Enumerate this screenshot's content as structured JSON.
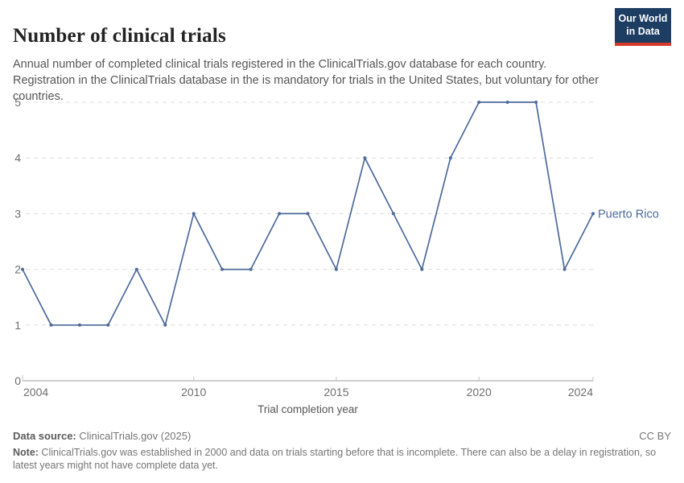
{
  "header": {
    "title": "Number of clinical trials",
    "subtitle": "Annual number of completed clinical trials registered in the ClinicalTrials.gov database for each country. Registration in the ClinicalTrials database in the is mandatory for trials in the United States, but voluntary for other countries.",
    "logo": {
      "line1": "Our World",
      "line2": "in Data"
    }
  },
  "chart_data": {
    "type": "line",
    "title": "Number of clinical trials",
    "xlabel": "Trial completion year",
    "ylabel": "",
    "xlim": [
      2004,
      2024
    ],
    "ylim": [
      0,
      5
    ],
    "xticks": [
      2004,
      2010,
      2015,
      2020,
      2024
    ],
    "yticks": [
      0,
      1,
      2,
      3,
      4,
      5
    ],
    "grid": "dashed-horizontal",
    "legend_position": "end-of-line-label",
    "series": [
      {
        "name": "Puerto Rico",
        "color": "#4c6a9c",
        "x": [
          2004,
          2005,
          2006,
          2007,
          2008,
          2009,
          2010,
          2011,
          2012,
          2013,
          2014,
          2015,
          2016,
          2017,
          2018,
          2019,
          2020,
          2021,
          2022,
          2023,
          2024
        ],
        "values": [
          2,
          1,
          1,
          1,
          2,
          1,
          3,
          2,
          2,
          3,
          3,
          2,
          4,
          3,
          2,
          4,
          5,
          5,
          5,
          2,
          3
        ]
      }
    ]
  },
  "footer": {
    "datasource_label": "Data source:",
    "datasource_value": " ClinicalTrials.gov (2025)",
    "license": "CC BY",
    "note_label": "Note:",
    "note_text": " ClinicalTrials.gov was established in 2000 and data on trials starting before that is incomplete. There can also be a delay in registration, so latest years might not have complete data yet."
  },
  "colors": {
    "line": "#4c6a9c",
    "grid": "#dcdcdc",
    "axis": "#9c9c9c",
    "tick": "#c2c2c2",
    "tick_label": "#6e6e6e",
    "logo_bg": "#1d3d63",
    "logo_bar": "#d93b2b"
  }
}
